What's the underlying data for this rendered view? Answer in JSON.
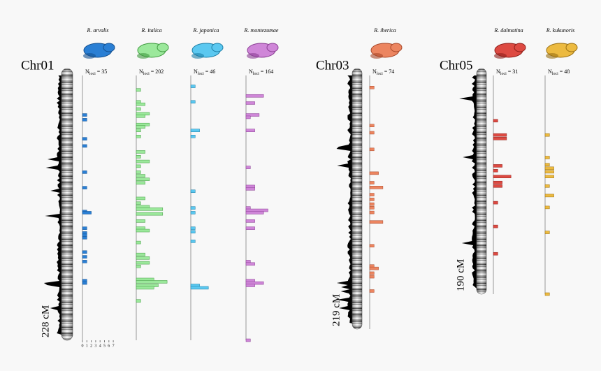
{
  "n_symbol": "N",
  "n_sub": "loci",
  "scale_ticks": [
    0,
    1,
    2,
    3,
    4,
    5,
    6,
    7
  ],
  "chromosomes": [
    {
      "name": "Chr01",
      "length": 228,
      "length_label": "228 cM",
      "species": [
        {
          "name": "R. arvalis",
          "color": "#2a7fd4",
          "stroke": "#14508f",
          "count": "= 35",
          "loci_cM": [
            39,
            43,
            59,
            65,
            87,
            100,
            120,
            121,
            134,
            138,
            140,
            142,
            154,
            158,
            162,
            178,
            180
          ],
          "loci_counts": [
            1,
            1,
            1,
            1,
            1,
            1,
            1,
            2,
            1,
            1,
            1,
            1,
            1,
            1,
            1,
            1,
            1
          ]
        },
        {
          "name": "R. italica",
          "color": "#9be89b",
          "stroke": "#3f9a3f",
          "count": "= 202",
          "loci_cM": [
            18,
            28,
            30,
            34,
            38,
            40,
            47,
            49,
            52,
            57,
            70,
            74,
            78,
            82,
            87,
            90,
            93,
            96,
            109,
            113,
            116,
            118,
            122,
            128,
            134,
            136,
            146,
            156,
            159,
            163,
            166,
            177,
            179,
            182,
            184,
            195
          ],
          "loci_counts": [
            1,
            1,
            2,
            1,
            3,
            2,
            3,
            2,
            1,
            1,
            2,
            1,
            3,
            1,
            1,
            2,
            3,
            2,
            2,
            1,
            3,
            6,
            6,
            2,
            2,
            3,
            1,
            2,
            3,
            3,
            1,
            4,
            7,
            5,
            4,
            1
          ]
        },
        {
          "name": "R. japonica",
          "color": "#5bc8f0",
          "stroke": "#1d7ea6",
          "count": "= 46",
          "loci_cM": [
            15,
            28,
            52,
            57,
            103,
            117,
            121,
            134,
            137,
            145,
            182,
            184
          ],
          "loci_counts": [
            1,
            1,
            2,
            1,
            1,
            1,
            1,
            1,
            1,
            1,
            2,
            4
          ]
        },
        {
          "name": "R. montezumae",
          "color": "#cf86d8",
          "stroke": "#8a3e94",
          "count": "= 164",
          "loci_cM": [
            23,
            29,
            39,
            41,
            52,
            83,
            99,
            101,
            117,
            119,
            121,
            128,
            134,
            162,
            164,
            178,
            180,
            182,
            228
          ],
          "loci_counts": [
            4,
            2,
            3,
            1,
            2,
            1,
            2,
            2,
            1,
            5,
            4,
            2,
            2,
            1,
            2,
            2,
            4,
            2,
            1
          ]
        }
      ]
    },
    {
      "name": "Chr03",
      "length": 219,
      "length_label": "219 cM",
      "species": [
        {
          "name": "R. iberica",
          "color": "#ec8560",
          "stroke": "#a8482a",
          "count": "= 74",
          "loci_cM": [
            16,
            48,
            54,
            68,
            88,
            96,
            100,
            106,
            110,
            114,
            117,
            121,
            129,
            149,
            166,
            168,
            172,
            175,
            187
          ],
          "loci_counts": [
            1,
            1,
            1,
            1,
            2,
            1,
            3,
            1,
            1,
            1,
            1,
            1,
            3,
            1,
            1,
            2,
            1,
            1,
            1
          ]
        }
      ]
    },
    {
      "name": "Chr05",
      "length": 190,
      "length_label": "190 cM",
      "species": [
        {
          "name": "R. dalmatina",
          "color": "#dd4a42",
          "stroke": "#8e1f1a",
          "count": "= 31",
          "loci_cM": [
            44,
            56,
            59,
            82,
            86,
            91,
            96,
            99,
            113,
            133,
            156
          ],
          "loci_counts": [
            1,
            3,
            3,
            2,
            1,
            4,
            2,
            2,
            1,
            1,
            1
          ]
        },
        {
          "name": "R. kukunoris",
          "color": "#ecba40",
          "stroke": "#9a6f12",
          "count": "= 48",
          "loci_cM": [
            56,
            75,
            81,
            84,
            87,
            91,
            99,
            107,
            117,
            138,
            190
          ],
          "loci_counts": [
            1,
            1,
            1,
            2,
            2,
            2,
            1,
            2,
            1,
            1,
            1
          ]
        }
      ]
    }
  ]
}
